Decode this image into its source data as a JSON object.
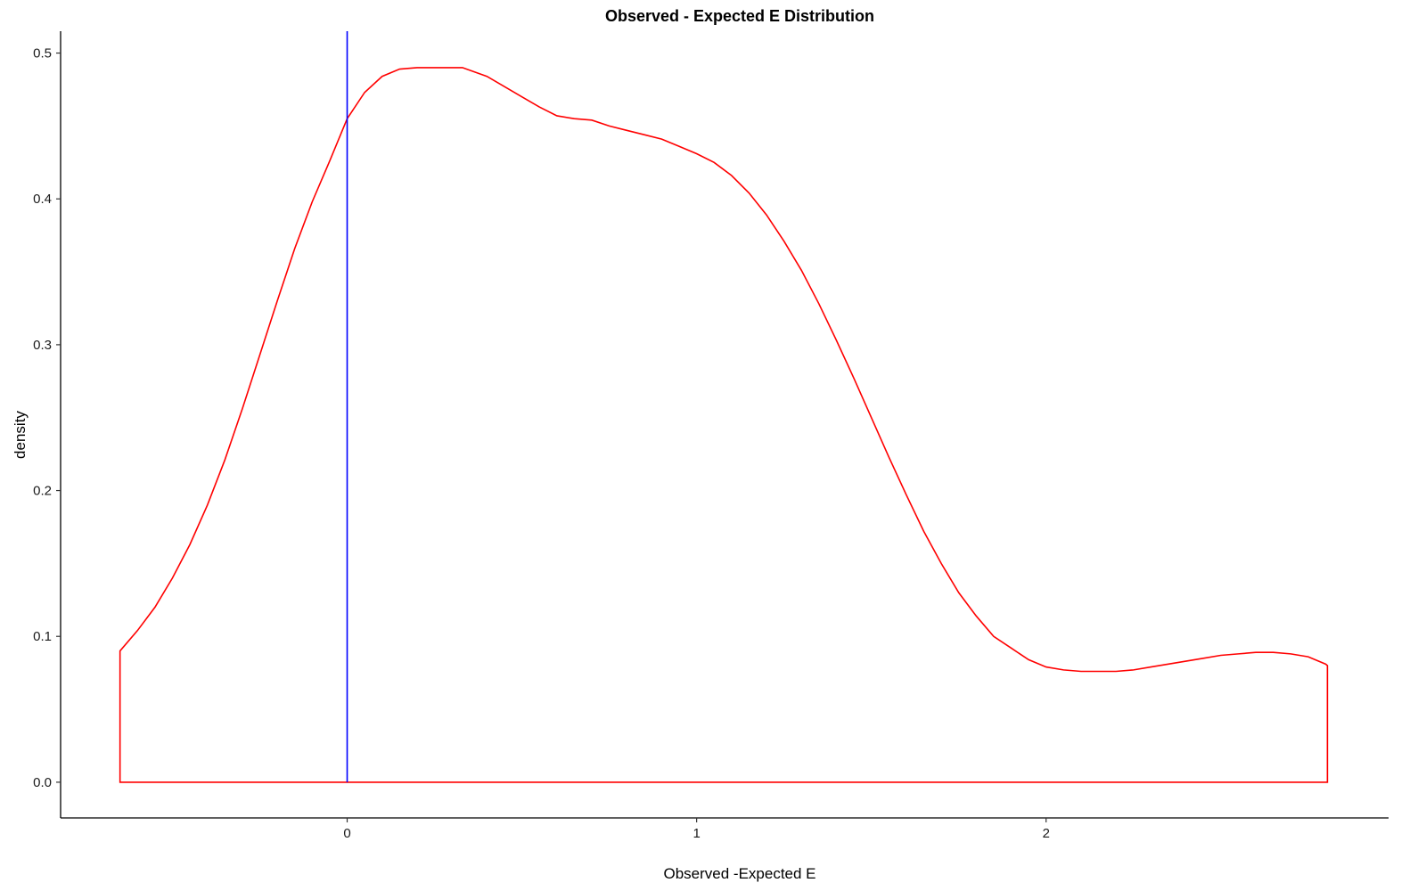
{
  "chart_data": {
    "type": "area",
    "title": "Observed - Expected E Distribution",
    "xlabel": "Observed -Expected E",
    "ylabel": "density",
    "xlim": [
      -0.82,
      2.98
    ],
    "ylim": [
      -0.0245,
      0.515
    ],
    "x_ticks": [
      {
        "value": 0,
        "label": "0"
      },
      {
        "value": 1,
        "label": "1"
      },
      {
        "value": 2,
        "label": "2"
      }
    ],
    "y_ticks": [
      {
        "value": 0.0,
        "label": "0.0"
      },
      {
        "value": 0.1,
        "label": "0.1"
      },
      {
        "value": 0.2,
        "label": "0.2"
      },
      {
        "value": 0.3,
        "label": "0.3"
      },
      {
        "value": 0.4,
        "label": "0.4"
      },
      {
        "value": 0.5,
        "label": "0.5"
      }
    ],
    "grid": false,
    "series": [
      {
        "color": "#ff0000",
        "x": [
          -0.65,
          -0.6,
          -0.55,
          -0.5,
          -0.45,
          -0.4,
          -0.35,
          -0.3,
          -0.25,
          -0.2,
          -0.15,
          -0.1,
          -0.05,
          0.0,
          0.05,
          0.1,
          0.15,
          0.2,
          0.25,
          0.3,
          0.33,
          0.4,
          0.45,
          0.5,
          0.55,
          0.6,
          0.65,
          0.7,
          0.75,
          0.8,
          0.85,
          0.9,
          0.95,
          1.0,
          1.05,
          1.1,
          1.15,
          1.2,
          1.25,
          1.3,
          1.35,
          1.4,
          1.45,
          1.5,
          1.55,
          1.6,
          1.65,
          1.7,
          1.75,
          1.8,
          1.85,
          1.9,
          1.95,
          2.0,
          2.05,
          2.1,
          2.15,
          2.2,
          2.25,
          2.3,
          2.35,
          2.4,
          2.45,
          2.5,
          2.55,
          2.6,
          2.65,
          2.7,
          2.75,
          2.8,
          2.805
        ],
        "y": [
          0.09,
          0.104,
          0.12,
          0.14,
          0.163,
          0.19,
          0.221,
          0.256,
          0.293,
          0.33,
          0.366,
          0.398,
          0.426,
          0.455,
          0.473,
          0.484,
          0.489,
          0.49,
          0.49,
          0.49,
          0.49,
          0.484,
          0.477,
          0.47,
          0.463,
          0.457,
          0.455,
          0.454,
          0.45,
          0.447,
          0.444,
          0.441,
          0.436,
          0.431,
          0.425,
          0.416,
          0.404,
          0.389,
          0.371,
          0.351,
          0.328,
          0.303,
          0.277,
          0.25,
          0.223,
          0.197,
          0.172,
          0.15,
          0.13,
          0.114,
          0.1,
          0.092,
          0.084,
          0.079,
          0.077,
          0.076,
          0.076,
          0.076,
          0.077,
          0.079,
          0.081,
          0.083,
          0.085,
          0.087,
          0.088,
          0.089,
          0.089,
          0.088,
          0.086,
          0.081,
          0.08
        ]
      }
    ],
    "reference_lines": [
      {
        "orientation": "vertical",
        "x": 0,
        "color": "#0000ff"
      }
    ]
  }
}
